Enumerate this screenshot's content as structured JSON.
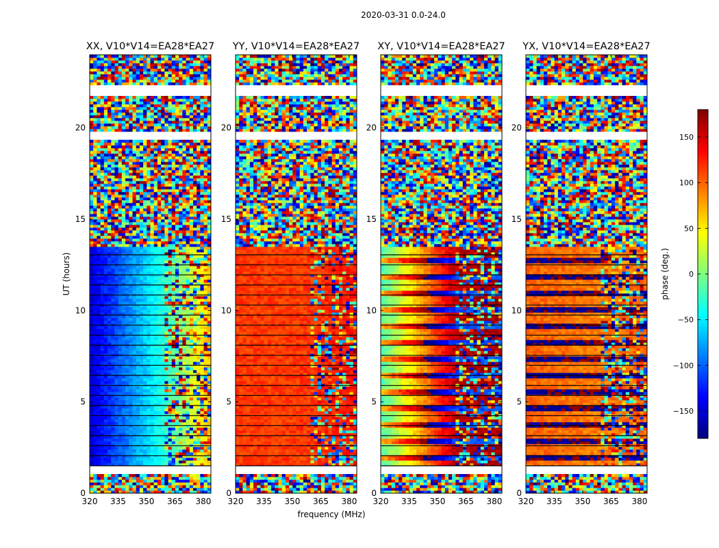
{
  "suptitle": "2020-03-31 0.0-24.0",
  "xlabel": "frequency (MHz)",
  "ylabel": "UT (hours)",
  "colorbar": {
    "label": "phase (deg.)",
    "ticks": [
      150,
      100,
      50,
      0,
      -50,
      -100,
      -150
    ],
    "tick_labels": [
      "150",
      "100",
      "50",
      "0",
      "−50",
      "−100",
      "−150"
    ],
    "vmin": -180,
    "vmax": 180,
    "colormap": "jet",
    "colors": [
      "#00007f",
      "#0000ff",
      "#007fff",
      "#00ffff",
      "#7fff7f",
      "#ffff00",
      "#ff7f00",
      "#ff0000",
      "#7f0000"
    ]
  },
  "chart_data": {
    "type": "heatmap",
    "quantity": "phase (deg.)",
    "xlim": [
      320,
      384
    ],
    "ylim": [
      0,
      24
    ],
    "x_ticks": [
      320,
      335,
      350,
      365,
      380
    ],
    "x_tick_labels": [
      "320",
      "335",
      "350",
      "365",
      "380"
    ],
    "y_ticks": [
      0,
      5,
      10,
      15,
      20
    ],
    "y_tick_labels": [
      "0",
      "5",
      "10",
      "15",
      "20"
    ],
    "flagged_ut_ranges": [
      [
        1.1,
        1.5
      ],
      [
        19.4,
        19.8
      ],
      [
        21.7,
        22.3
      ]
    ],
    "noise_ut_ranges": [
      [
        0,
        1.1
      ],
      [
        13.5,
        18.3
      ],
      [
        18.3,
        24
      ]
    ],
    "band_edge_mhz": 360,
    "panels": [
      {
        "title": "XX, V10*V14=EA28*EA27",
        "description": "smooth gradient",
        "phase_at_320mhz": -150,
        "phase_at_360mhz": -30,
        "phase_at_382mhz": 60
      },
      {
        "title": "YY, V10*V14=EA28*EA27",
        "description": "near-constant phase",
        "phase_at_320mhz": 115,
        "phase_at_360mhz": 115,
        "phase_at_382mhz": 130
      },
      {
        "title": "XY, V10*V14=EA28*EA27",
        "description": "banded cross-hand phase",
        "phase_at_320mhz": -20,
        "phase_at_360mhz": 160,
        "phase_at_382mhz": 170
      },
      {
        "title": "YX, V10*V14=EA28*EA27",
        "description": "banded cross-hand phase",
        "phase_at_320mhz": 100,
        "phase_at_360mhz": 90,
        "phase_at_382mhz": 100
      }
    ]
  }
}
